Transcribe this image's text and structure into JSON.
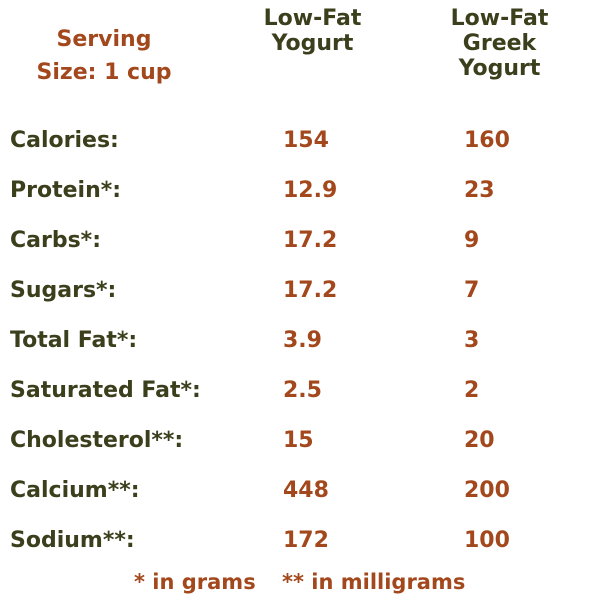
{
  "header": {
    "serving_size": "Serving\nSize: 1 cup",
    "col1_title": "Low-Fat\nYogurt",
    "col2_title": "Low-Fat\nGreek\nYogurt"
  },
  "rows": [
    {
      "label": "Calories:",
      "yogurt": "154",
      "greek": "160"
    },
    {
      "label": "Protein*:",
      "yogurt": "12.9",
      "greek": "23"
    },
    {
      "label": "Carbs*:",
      "yogurt": "17.2",
      "greek": "9"
    },
    {
      "label": "Sugars*:",
      "yogurt": "17.2",
      "greek": "7"
    },
    {
      "label": "Total Fat*:",
      "yogurt": "3.9",
      "greek": "3"
    },
    {
      "label": "Saturated Fat*:",
      "yogurt": "2.5",
      "greek": "2"
    },
    {
      "label": "Cholesterol**:",
      "yogurt": "15",
      "greek": "20"
    },
    {
      "label": "Calcium**:",
      "yogurt": "448",
      "greek": "200"
    },
    {
      "label": "Sodium**:",
      "yogurt": "172",
      "greek": "100"
    }
  ],
  "footnotes": {
    "grams": "* in grams",
    "milligrams": "** in milligrams"
  },
  "colors": {
    "label_dark": "#3b3f1c",
    "value_rust": "#a3481d",
    "background": "#ffffff"
  }
}
